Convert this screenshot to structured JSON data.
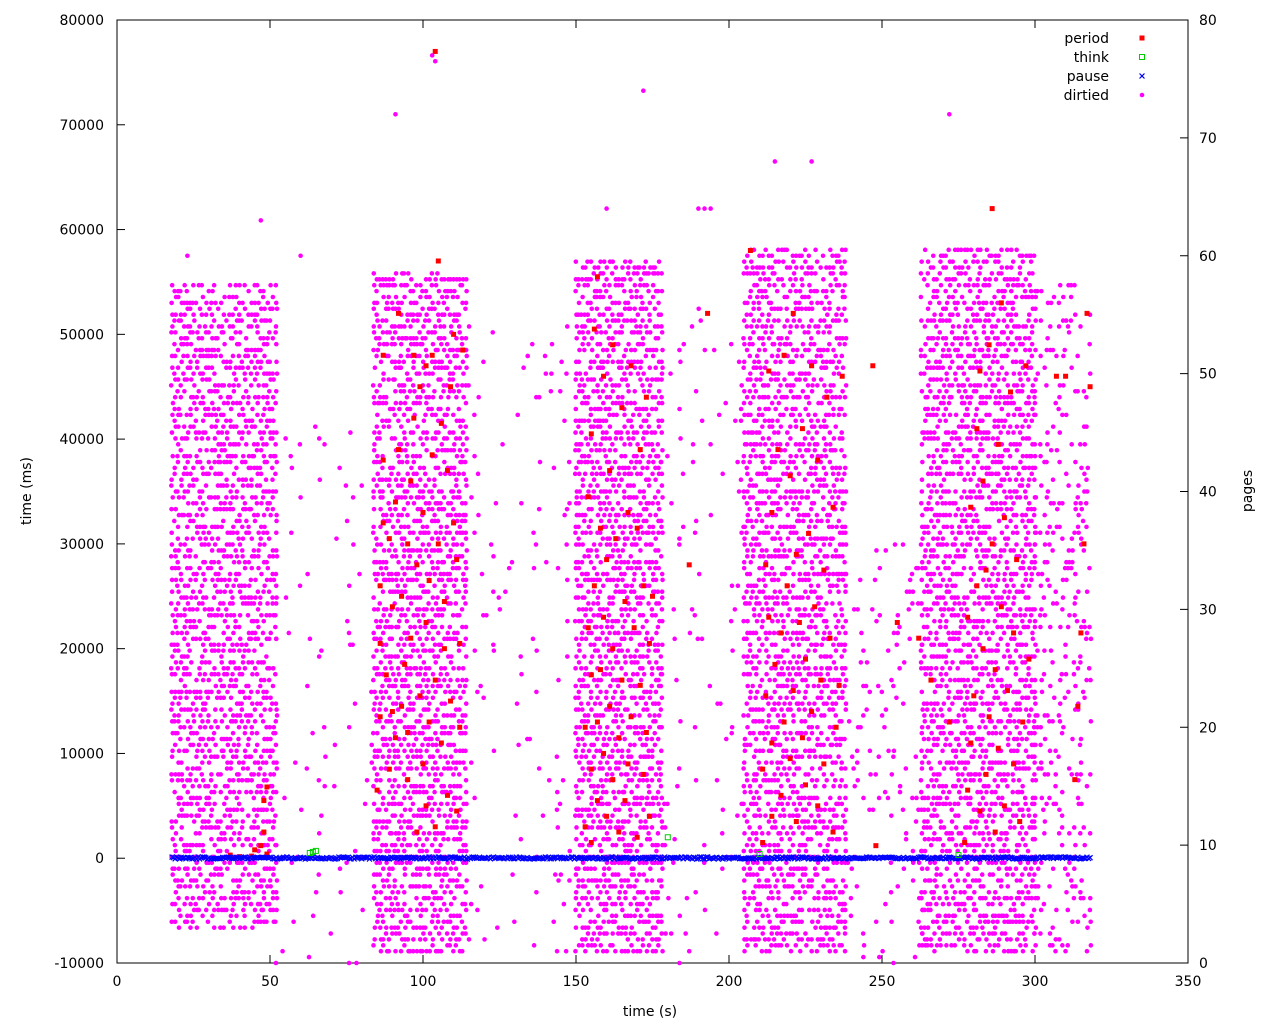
{
  "chart_data": {
    "type": "scatter",
    "title": "",
    "xlabel": "time (s)",
    "ylabel": "time (ms)",
    "y2label": "pages",
    "xlim": [
      0,
      350
    ],
    "ylim": [
      -10000,
      80000
    ],
    "y2lim": [
      0,
      80
    ],
    "x_ticks": [
      0,
      50,
      100,
      150,
      200,
      250,
      300,
      350
    ],
    "y_ticks": [
      -10000,
      0,
      10000,
      20000,
      30000,
      40000,
      50000,
      60000,
      70000,
      80000
    ],
    "y2_ticks": [
      0,
      10,
      20,
      30,
      40,
      50,
      60,
      70,
      80
    ],
    "grid": false,
    "legend_position": "top-right",
    "series": [
      {
        "name": "period",
        "axis": "y1",
        "marker": "filled-square",
        "color": "#ff0000",
        "points": [
          [
            37,
            300
          ],
          [
            45,
            800
          ],
          [
            47,
            1200
          ],
          [
            48,
            2500
          ],
          [
            48,
            5500
          ],
          [
            49,
            6800
          ],
          [
            49,
            400
          ],
          [
            44,
            200
          ],
          [
            40,
            150
          ],
          [
            85,
            6500
          ],
          [
            86,
            13500
          ],
          [
            86,
            20500
          ],
          [
            86,
            26000
          ],
          [
            87,
            32000
          ],
          [
            87,
            38000
          ],
          [
            87,
            48000
          ],
          [
            88,
            17500
          ],
          [
            89,
            8500
          ],
          [
            89,
            30500
          ],
          [
            90,
            14000
          ],
          [
            90,
            24000
          ],
          [
            91,
            11500
          ],
          [
            91,
            34000
          ],
          [
            92,
            39000
          ],
          [
            92,
            52000
          ],
          [
            93,
            14500
          ],
          [
            93,
            25000
          ],
          [
            94,
            18500
          ],
          [
            95,
            7500
          ],
          [
            95,
            12000
          ],
          [
            95,
            30000
          ],
          [
            96,
            21000
          ],
          [
            96,
            36000
          ],
          [
            97,
            42000
          ],
          [
            97,
            48000
          ],
          [
            98,
            2500
          ],
          [
            98,
            28000
          ],
          [
            99,
            15500
          ],
          [
            99,
            45000
          ],
          [
            100,
            9000
          ],
          [
            100,
            33000
          ],
          [
            101,
            5000
          ],
          [
            101,
            22500
          ],
          [
            101,
            47000
          ],
          [
            102,
            13000
          ],
          [
            102,
            26500
          ],
          [
            103,
            38500
          ],
          [
            103,
            48000
          ],
          [
            104,
            3000
          ],
          [
            104,
            17000
          ],
          [
            104,
            77000
          ],
          [
            105,
            30000
          ],
          [
            105,
            57000
          ],
          [
            106,
            11000
          ],
          [
            106,
            41500
          ],
          [
            107,
            20000
          ],
          [
            107,
            24500
          ],
          [
            108,
            6000
          ],
          [
            108,
            37000
          ],
          [
            109,
            15000
          ],
          [
            109,
            45000
          ],
          [
            110,
            32000
          ],
          [
            110,
            50000
          ],
          [
            111,
            4500
          ],
          [
            111,
            28500
          ],
          [
            112,
            12500
          ],
          [
            112,
            20500
          ],
          [
            113,
            48500
          ],
          [
            153,
            3000
          ],
          [
            153,
            12500
          ],
          [
            154,
            22000
          ],
          [
            154,
            34500
          ],
          [
            155,
            1500
          ],
          [
            155,
            8500
          ],
          [
            155,
            17500
          ],
          [
            155,
            40500
          ],
          [
            156,
            26000
          ],
          [
            156,
            50500
          ],
          [
            157,
            5500
          ],
          [
            157,
            13000
          ],
          [
            157,
            55500
          ],
          [
            158,
            18000
          ],
          [
            158,
            31500
          ],
          [
            159,
            10000
          ],
          [
            159,
            23000
          ],
          [
            159,
            46000
          ],
          [
            160,
            4000
          ],
          [
            160,
            28500
          ],
          [
            161,
            14500
          ],
          [
            161,
            37000
          ],
          [
            162,
            7500
          ],
          [
            162,
            20000
          ],
          [
            162,
            49000
          ],
          [
            163,
            30500
          ],
          [
            164,
            11500
          ],
          [
            164,
            2500
          ],
          [
            165,
            17000
          ],
          [
            165,
            43000
          ],
          [
            166,
            24500
          ],
          [
            166,
            5500
          ],
          [
            167,
            9000
          ],
          [
            167,
            33000
          ],
          [
            168,
            13500
          ],
          [
            168,
            47000
          ],
          [
            169,
            22000
          ],
          [
            170,
            2000
          ],
          [
            170,
            31500
          ],
          [
            171,
            16500
          ],
          [
            171,
            39000
          ],
          [
            172,
            8000
          ],
          [
            172,
            26000
          ],
          [
            173,
            12000
          ],
          [
            173,
            44000
          ],
          [
            174,
            4000
          ],
          [
            174,
            20500
          ],
          [
            175,
            25000
          ],
          [
            187,
            28000
          ],
          [
            193,
            52000
          ],
          [
            207,
            58000
          ],
          [
            211,
            1500
          ],
          [
            211,
            8500
          ],
          [
            212,
            15500
          ],
          [
            212,
            28000
          ],
          [
            213,
            23000
          ],
          [
            213,
            46500
          ],
          [
            214,
            4000
          ],
          [
            214,
            11000
          ],
          [
            214,
            33000
          ],
          [
            215,
            18500
          ],
          [
            216,
            39000
          ],
          [
            217,
            6000
          ],
          [
            217,
            21500
          ],
          [
            218,
            13000
          ],
          [
            218,
            48000
          ],
          [
            219,
            26000
          ],
          [
            220,
            9500
          ],
          [
            220,
            36500
          ],
          [
            221,
            16000
          ],
          [
            221,
            52000
          ],
          [
            222,
            3500
          ],
          [
            222,
            29000
          ],
          [
            223,
            22500
          ],
          [
            224,
            11500
          ],
          [
            224,
            41000
          ],
          [
            225,
            7000
          ],
          [
            225,
            19000
          ],
          [
            226,
            31000
          ],
          [
            227,
            14000
          ],
          [
            227,
            47000
          ],
          [
            228,
            24000
          ],
          [
            229,
            5000
          ],
          [
            229,
            38000
          ],
          [
            230,
            17000
          ],
          [
            231,
            27500
          ],
          [
            231,
            9000
          ],
          [
            232,
            44000
          ],
          [
            233,
            21000
          ],
          [
            234,
            2500
          ],
          [
            234,
            33500
          ],
          [
            235,
            12500
          ],
          [
            236,
            16500
          ],
          [
            237,
            46000
          ],
          [
            247,
            47000
          ],
          [
            248,
            1200
          ],
          [
            255,
            22500
          ],
          [
            262,
            21000
          ],
          [
            266,
            17000
          ],
          [
            272,
            13000
          ],
          [
            277,
            1500
          ],
          [
            278,
            6500
          ],
          [
            278,
            23000
          ],
          [
            279,
            11000
          ],
          [
            279,
            33500
          ],
          [
            280,
            15500
          ],
          [
            281,
            26000
          ],
          [
            281,
            41000
          ],
          [
            282,
            4500
          ],
          [
            282,
            46500
          ],
          [
            283,
            20000
          ],
          [
            283,
            36000
          ],
          [
            284,
            8000
          ],
          [
            284,
            27500
          ],
          [
            285,
            13500
          ],
          [
            285,
            49000
          ],
          [
            286,
            30000
          ],
          [
            286,
            62000
          ],
          [
            287,
            2500
          ],
          [
            287,
            18000
          ],
          [
            288,
            10500
          ],
          [
            288,
            39500
          ],
          [
            289,
            24000
          ],
          [
            289,
            53000
          ],
          [
            290,
            5000
          ],
          [
            290,
            32500
          ],
          [
            291,
            16000
          ],
          [
            292,
            44500
          ],
          [
            293,
            9000
          ],
          [
            293,
            21500
          ],
          [
            294,
            28500
          ],
          [
            295,
            3500
          ],
          [
            296,
            13000
          ],
          [
            297,
            47000
          ],
          [
            298,
            19000
          ],
          [
            307,
            46000
          ],
          [
            310,
            46000
          ],
          [
            313,
            7500
          ],
          [
            314,
            14500
          ],
          [
            315,
            21500
          ],
          [
            316,
            30000
          ],
          [
            317,
            52000
          ],
          [
            318,
            45000
          ]
        ]
      },
      {
        "name": "think",
        "axis": "y1",
        "marker": "open-square",
        "color": "#00cc00",
        "points": [
          [
            63,
            500
          ],
          [
            64,
            600
          ],
          [
            65,
            700
          ],
          [
            180,
            2000
          ],
          [
            210,
            400
          ],
          [
            275,
            300
          ]
        ]
      },
      {
        "name": "pause",
        "axis": "y1",
        "marker": "cross",
        "color": "#0000ff",
        "points_range": {
          "x_start": 18,
          "x_end": 318,
          "step": 0.5,
          "y_min": -80,
          "y_max": 120
        }
      },
      {
        "name": "dirtied",
        "axis": "y2",
        "marker": "filled-circle",
        "color": "#ff00ff",
        "clusters": [
          {
            "x_start": 18,
            "x_end": 52,
            "y_min": 3,
            "y_max": 57,
            "density": 0.8
          },
          {
            "x_start": 84,
            "x_end": 114,
            "y_min": 1,
            "y_max": 58,
            "density": 0.85
          },
          {
            "x_start": 150,
            "x_end": 178,
            "y_min": 1,
            "y_max": 59,
            "density": 0.85
          },
          {
            "x_start": 205,
            "x_end": 238,
            "y_min": 1,
            "y_max": 60,
            "density": 0.8
          },
          {
            "x_start": 263,
            "x_end": 300,
            "y_min": 1,
            "y_max": 60,
            "density": 0.8
          },
          {
            "x_start": 52,
            "x_end": 84,
            "y_min": 0,
            "y_max": 45,
            "density": 0.05
          },
          {
            "x_start": 114,
            "x_end": 150,
            "y_min": 0,
            "y_max": 55,
            "density": 0.05
          },
          {
            "x_start": 178,
            "x_end": 205,
            "y_min": 0,
            "y_max": 55,
            "density": 0.05
          },
          {
            "x_start": 238,
            "x_end": 263,
            "y_min": 0,
            "y_max": 35,
            "density": 0.12
          },
          {
            "x_start": 300,
            "x_end": 318,
            "y_min": 1,
            "y_max": 57,
            "density": 0.3
          }
        ],
        "outliers": [
          [
            23,
            60
          ],
          [
            47,
            63
          ],
          [
            60,
            60
          ],
          [
            91,
            72
          ],
          [
            103,
            77
          ],
          [
            104,
            76.5
          ],
          [
            160,
            64
          ],
          [
            172,
            74
          ],
          [
            190,
            64
          ],
          [
            192,
            64
          ],
          [
            194,
            64
          ],
          [
            215,
            68
          ],
          [
            227,
            68
          ],
          [
            272,
            72
          ]
        ]
      }
    ]
  }
}
